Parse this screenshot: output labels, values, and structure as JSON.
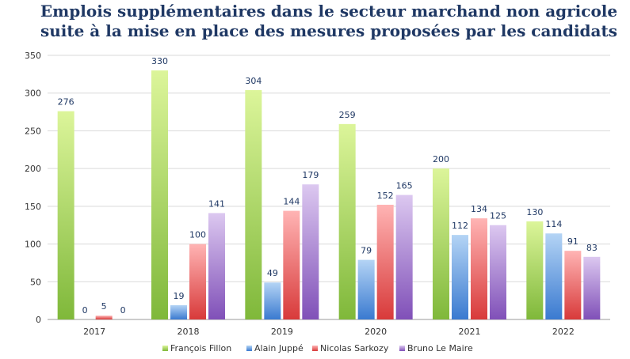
{
  "chart_data": {
    "type": "bar",
    "title_lines": [
      "Emplois supplémentaires dans le secteur marchand non agricole",
      "suite à la mise en place des mesures proposées par les candidats"
    ],
    "categories": [
      "2017",
      "2018",
      "2019",
      "2020",
      "2021",
      "2022"
    ],
    "series": [
      {
        "name": "François Fillon",
        "values": [
          276,
          330,
          304,
          259,
          200,
          130
        ],
        "color_top": "#dcf59a",
        "color_bottom": "#7fb83a"
      },
      {
        "name": "Alain Juppé",
        "values": [
          0,
          19,
          49,
          79,
          112,
          114
        ],
        "color_top": "#b4d4f5",
        "color_bottom": "#3a7ad0"
      },
      {
        "name": "Nicolas Sarkozy",
        "values": [
          5,
          100,
          144,
          152,
          134,
          91
        ],
        "color_top": "#ffb4b4",
        "color_bottom": "#d83a3a"
      },
      {
        "name": "Bruno Le Maire",
        "values": [
          0,
          141,
          179,
          165,
          125,
          83
        ],
        "color_top": "#dcc8f0",
        "color_bottom": "#8050b8"
      }
    ],
    "y_ticks": [
      "0",
      "50",
      "100",
      "150",
      "200",
      "250",
      "300",
      "350"
    ],
    "ylim": [
      0,
      350
    ],
    "grid": true,
    "legend_position": "bottom"
  }
}
